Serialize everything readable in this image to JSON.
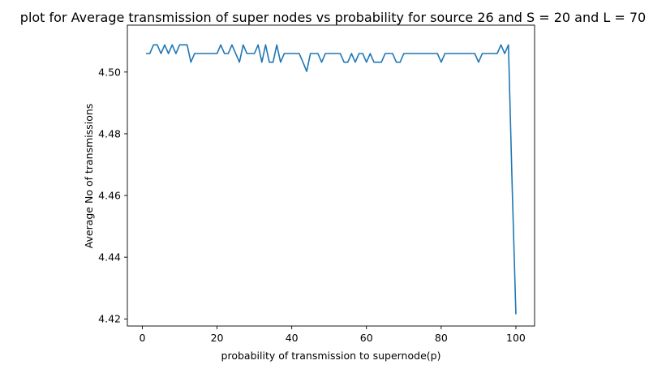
{
  "chart_data": {
    "type": "line",
    "title": "plot for Average transmission of super nodes vs probability for source 26 and S = 20 and L = 70",
    "xlabel": "probability of transmission to supernode(p)",
    "ylabel": "Average No of transmissions",
    "xlim": [
      -4.0,
      105.0
    ],
    "ylim": [
      4.4177,
      4.5152
    ],
    "xticks": [
      0,
      20,
      40,
      60,
      80,
      100
    ],
    "yticks": [
      4.42,
      4.44,
      4.46,
      4.48,
      4.5
    ],
    "xtick_labels": [
      "0",
      "20",
      "40",
      "60",
      "80",
      "100"
    ],
    "ytick_labels": [
      "4.42",
      "4.44",
      "4.46",
      "4.48",
      "4.50"
    ],
    "grid": false,
    "series": [
      {
        "color": "#1f77b4",
        "x": [
          1,
          2,
          3,
          4,
          5,
          6,
          7,
          8,
          9,
          10,
          11,
          12,
          13,
          14,
          15,
          16,
          17,
          18,
          19,
          20,
          21,
          22,
          23,
          24,
          25,
          26,
          27,
          28,
          29,
          30,
          31,
          32,
          33,
          34,
          35,
          36,
          37,
          38,
          39,
          40,
          41,
          42,
          43,
          44,
          45,
          46,
          47,
          48,
          49,
          50,
          51,
          52,
          53,
          54,
          55,
          56,
          57,
          58,
          59,
          60,
          61,
          62,
          63,
          64,
          65,
          66,
          67,
          68,
          69,
          70,
          71,
          72,
          73,
          74,
          75,
          76,
          77,
          78,
          79,
          80,
          81,
          82,
          83,
          84,
          85,
          86,
          87,
          88,
          89,
          90,
          91,
          92,
          93,
          94,
          95,
          96,
          97,
          98,
          99,
          100
        ],
        "values": [
          4.506,
          4.506,
          4.5088,
          4.5088,
          4.506,
          4.5088,
          4.506,
          4.5088,
          4.506,
          4.5088,
          4.5088,
          4.5088,
          4.5032,
          4.506,
          4.506,
          4.506,
          4.506,
          4.506,
          4.506,
          4.506,
          4.5088,
          4.506,
          4.506,
          4.5088,
          4.506,
          4.5032,
          4.5088,
          4.506,
          4.506,
          4.506,
          4.5088,
          4.5032,
          4.5088,
          4.5032,
          4.5032,
          4.5088,
          4.5032,
          4.506,
          4.506,
          4.506,
          4.506,
          4.506,
          4.5032,
          4.5002,
          4.506,
          4.506,
          4.506,
          4.5032,
          4.506,
          4.506,
          4.506,
          4.506,
          4.506,
          4.5032,
          4.5032,
          4.506,
          4.5032,
          4.506,
          4.506,
          4.5032,
          4.506,
          4.5032,
          4.5032,
          4.5032,
          4.506,
          4.506,
          4.506,
          4.5032,
          4.5032,
          4.506,
          4.506,
          4.506,
          4.506,
          4.506,
          4.506,
          4.506,
          4.506,
          4.506,
          4.506,
          4.5032,
          4.506,
          4.506,
          4.506,
          4.506,
          4.506,
          4.506,
          4.506,
          4.506,
          4.506,
          4.5032,
          4.506,
          4.506,
          4.506,
          4.506,
          4.506,
          4.5088,
          4.506,
          4.5088,
          4.463,
          4.4215
        ]
      }
    ]
  }
}
